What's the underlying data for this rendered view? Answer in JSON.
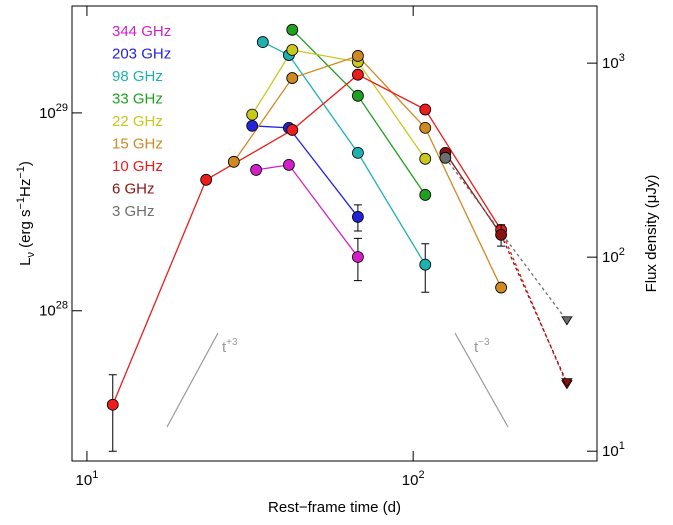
{
  "chart_data": {
    "type": "scatter",
    "xlabel": "Rest−frame time (d)",
    "ylabel_parts": [
      {
        "text": "L"
      },
      {
        "text": "ν",
        "sub": true
      },
      {
        "text": " (erg s"
      },
      {
        "text": "−1",
        "sup": true
      },
      {
        "text": "Hz"
      },
      {
        "text": "−1",
        "sup": true
      },
      {
        "text": ")"
      }
    ],
    "y2label": "Flux density (μJy)",
    "xscale": "log",
    "yscale": "log",
    "xlim": [
      9,
      366
    ],
    "ylim": [
      1.74e+27,
      3.47e+29
    ],
    "y2lim": [
      8.9,
      1970
    ],
    "xticks": [
      {
        "value": 10,
        "label": "10",
        "exponent": "1"
      },
      {
        "value": 100,
        "label": "10",
        "exponent": "2"
      }
    ],
    "yticks": [
      {
        "value": 1e+28,
        "label": "10",
        "exponent": "28"
      },
      {
        "value": 1e+29,
        "label": "10",
        "exponent": "29"
      }
    ],
    "y2ticks": [
      {
        "value": 10,
        "label": "10",
        "exponent": "1"
      },
      {
        "value": 100,
        "label": "10",
        "exponent": "2"
      },
      {
        "value": 1000,
        "label": "10",
        "exponent": "3"
      }
    ],
    "annotations": [
      {
        "text": "t",
        "exponent": "+3"
      },
      {
        "text": "t",
        "exponent": "−3"
      }
    ],
    "series": [
      {
        "name": "344 GHz",
        "color": "#d21fc8",
        "x": [
          33.0,
          41.6,
          67.7
        ],
        "values": [
          5.15e+28,
          5.46e+28,
          1.87e+28
        ],
        "errors": [
          null,
          null,
          4.5e+27
        ],
        "upper_limits": [
          false,
          false,
          false
        ]
      },
      {
        "name": "203 GHz",
        "color": "#2323dc",
        "x": [
          32.1,
          41.6,
          67.7
        ],
        "values": [
          8.6e+28,
          8.4e+28,
          2.98e+28
        ],
        "errors": [
          null,
          null,
          4.5e+27
        ],
        "upper_limits": [
          false,
          false,
          false
        ]
      },
      {
        "name": "98 GHz",
        "color": "#1fb0b0",
        "x": [
          34.6,
          41.6,
          67.7,
          108.9
        ],
        "values": [
          2.28e+29,
          1.96e+29,
          6.28e+28,
          1.71e+28
        ],
        "errors": [
          null,
          null,
          null,
          4.7e+27
        ],
        "upper_limits": [
          false,
          false,
          false,
          false
        ]
      },
      {
        "name": "33 GHz",
        "color": "#1fa01f",
        "x": [
          42.6,
          67.7,
          108.9
        ],
        "values": [
          2.63e+29,
          1.22e+29,
          3.85e+28
        ],
        "errors": [
          null,
          null,
          null
        ],
        "upper_limits": [
          false,
          false,
          false
        ]
      },
      {
        "name": "22 GHz",
        "color": "#c8c81f",
        "x": [
          32.1,
          42.6,
          67.7,
          108.9
        ],
        "values": [
          9.8e+28,
          2.08e+29,
          1.81e+29,
          5.86e+28
        ],
        "errors": [
          null,
          null,
          null,
          null
        ],
        "upper_limits": [
          false,
          false,
          false,
          false
        ]
      },
      {
        "name": "15 GHz",
        "color": "#cf8a22",
        "x": [
          28.2,
          42.6,
          67.7,
          108.9,
          186
        ],
        "values": [
          5.66e+28,
          1.5e+29,
          1.94e+29,
          8.4e+28,
          1.31e+28
        ],
        "errors": [
          null,
          null,
          null,
          null,
          null
        ],
        "upper_limits": [
          false,
          false,
          false,
          false,
          false
        ]
      },
      {
        "name": "10 GHz",
        "color": "#ec1c1c",
        "x": [
          12.0,
          23.2,
          42.6,
          67.7,
          108.9,
          186,
          296
        ],
        "values": [
          3.35e+27,
          4.59e+28,
          8.2e+28,
          1.56e+29,
          1.04e+29,
          2.56e+28,
          4.23e+27
        ],
        "errors": [
          1.4e+27,
          null,
          null,
          null,
          null,
          null,
          null
        ],
        "upper_limits": [
          false,
          false,
          false,
          false,
          false,
          false,
          true
        ]
      },
      {
        "name": "6 GHz",
        "color": "#8b1212",
        "x": [
          125.5,
          186,
          296
        ],
        "values": [
          6.28e+28,
          2.42e+28,
          4.33e+27
        ],
        "errors": [
          null,
          3e+27,
          null
        ],
        "upper_limits": [
          false,
          false,
          true
        ]
      },
      {
        "name": "3 GHz",
        "color": "#6e6e6e",
        "x": [
          125.5,
          296
        ],
        "values": [
          5.93e+28,
          8.9e+27
        ],
        "errors": [
          null,
          null
        ],
        "upper_limits": [
          false,
          true
        ]
      }
    ]
  }
}
